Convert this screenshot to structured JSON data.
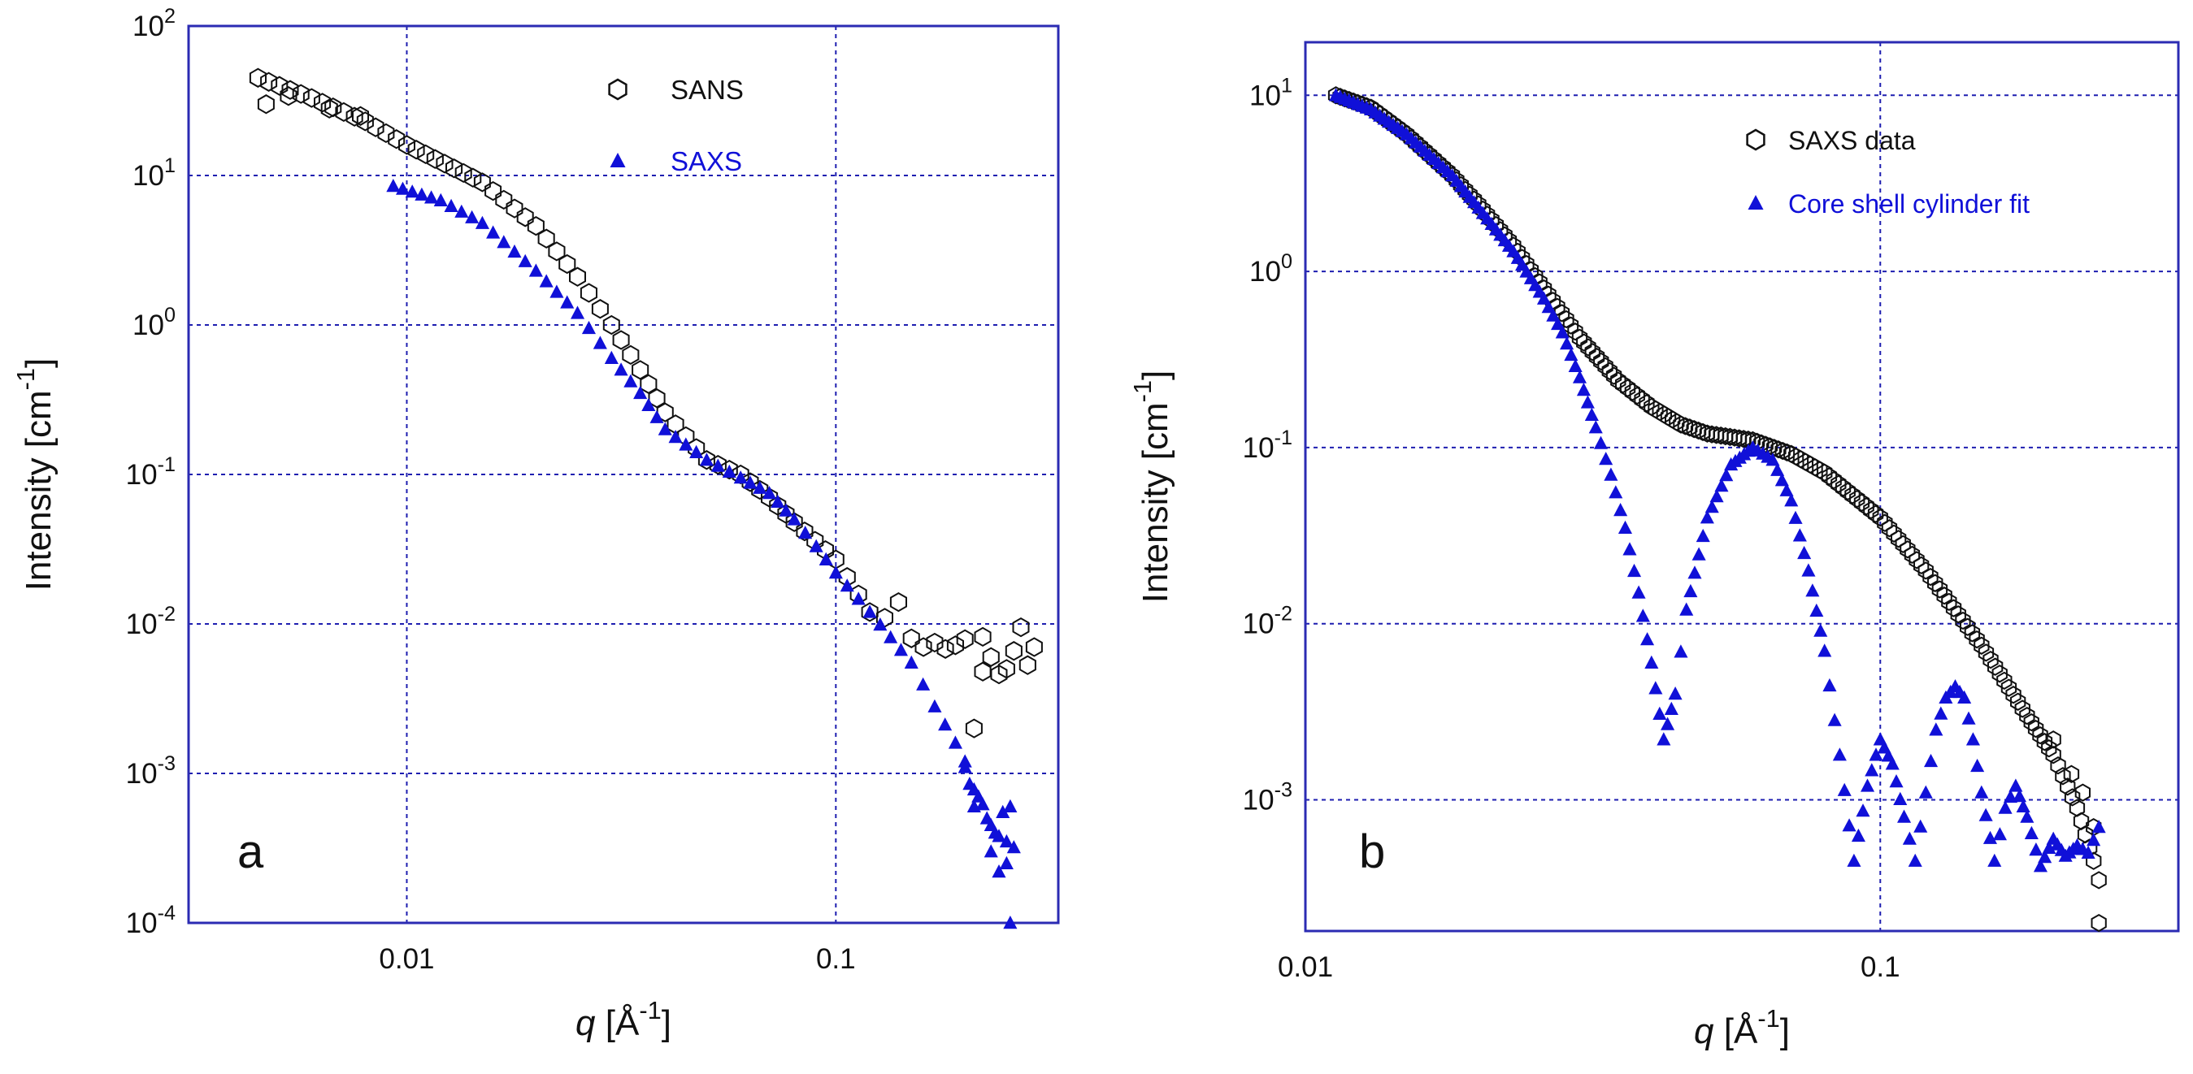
{
  "figure": {
    "colors": {
      "axis": "#2b2bb3",
      "grid": "#1e1eb0",
      "series_open": "#111111",
      "series_fill": "#1010d8",
      "text": "#111111"
    }
  },
  "chart_data": [
    {
      "type": "scatter",
      "panel_label": "a",
      "xscale": "log",
      "yscale": "log",
      "xlim": [
        0.0031,
        0.33
      ],
      "ylim": [
        0.0001,
        100
      ],
      "xticks": [
        {
          "value": 0.01,
          "label": "0.01"
        },
        {
          "value": 0.1,
          "label": "0.1"
        }
      ],
      "yticks": [
        {
          "value": 100,
          "base": "10",
          "exp": "2"
        },
        {
          "value": 10,
          "base": "10",
          "exp": "1"
        },
        {
          "value": 1,
          "base": "10",
          "exp": "0"
        },
        {
          "value": 0.1,
          "base": "10",
          "exp": "-1"
        },
        {
          "value": 0.01,
          "base": "10",
          "exp": "-2"
        },
        {
          "value": 0.001,
          "base": "10",
          "exp": "-3"
        },
        {
          "value": 0.0001,
          "base": "10",
          "exp": "-4"
        }
      ],
      "xlabel": {
        "var": "q",
        "unit": " [Å",
        "exp": "-1",
        "close": "]"
      },
      "ylabel": {
        "text": "Intensity [cm",
        "exp": "-1",
        "close": "]"
      },
      "legend_position": "top-center",
      "series": [
        {
          "name": "SANS",
          "marker": "hexagon-open",
          "legend_color": "#111111",
          "anchors": [
            [
              0.0045,
              45
            ],
            [
              0.006,
              33
            ],
            [
              0.008,
              23
            ],
            [
              0.01,
              16
            ],
            [
              0.015,
              9
            ],
            [
              0.02,
              4.6
            ],
            [
              0.025,
              2.1
            ],
            [
              0.03,
              1.0
            ],
            [
              0.035,
              0.5
            ],
            [
              0.04,
              0.26
            ],
            [
              0.05,
              0.125
            ],
            [
              0.06,
              0.1
            ],
            [
              0.07,
              0.07
            ],
            [
              0.08,
              0.048
            ],
            [
              0.1,
              0.027
            ],
            [
              0.12,
              0.012
            ]
          ],
          "scatter": [
            [
              0.0047,
              30
            ],
            [
              0.0053,
              34
            ],
            [
              0.0066,
              28
            ],
            [
              0.0078,
              25
            ],
            [
              0.13,
              0.011
            ],
            [
              0.14,
              0.014
            ],
            [
              0.15,
              0.008
            ],
            [
              0.16,
              0.007
            ],
            [
              0.17,
              0.0075
            ],
            [
              0.18,
              0.0068
            ],
            [
              0.19,
              0.0072
            ],
            [
              0.2,
              0.0079
            ],
            [
              0.21,
              0.002
            ],
            [
              0.22,
              0.0082
            ],
            [
              0.23,
              0.006
            ],
            [
              0.24,
              0.0046
            ],
            [
              0.25,
              0.005
            ],
            [
              0.26,
              0.0066
            ],
            [
              0.27,
              0.0095
            ],
            [
              0.28,
              0.0053
            ],
            [
              0.29,
              0.007
            ],
            [
              0.22,
              0.0048
            ]
          ]
        },
        {
          "name": "SAXS",
          "marker": "triangle-filled",
          "legend_color": "#1010d8",
          "anchors": [
            [
              0.0093,
              8.5
            ],
            [
              0.012,
              6.8
            ],
            [
              0.015,
              4.8
            ],
            [
              0.02,
              2.3
            ],
            [
              0.025,
              1.2
            ],
            [
              0.03,
              0.6
            ],
            [
              0.035,
              0.35
            ],
            [
              0.04,
              0.2
            ],
            [
              0.05,
              0.125
            ],
            [
              0.06,
              0.095
            ],
            [
              0.07,
              0.075
            ],
            [
              0.08,
              0.05
            ],
            [
              0.09,
              0.033
            ],
            [
              0.1,
              0.022
            ],
            [
              0.12,
              0.012
            ],
            [
              0.15,
              0.0055
            ],
            [
              0.17,
              0.0028
            ],
            [
              0.19,
              0.0016
            ],
            [
              0.2,
              0.0011
            ]
          ],
          "scatter": [
            [
              0.2,
              0.0012
            ],
            [
              0.205,
              0.00085
            ],
            [
              0.21,
              0.0006
            ],
            [
              0.215,
              0.0007
            ],
            [
              0.22,
              0.00062
            ],
            [
              0.225,
              0.0005
            ],
            [
              0.23,
              0.00045
            ],
            [
              0.235,
              0.0004
            ],
            [
              0.24,
              0.00038
            ],
            [
              0.245,
              0.00055
            ],
            [
              0.25,
              0.00035
            ],
            [
              0.255,
              0.0006
            ],
            [
              0.26,
              0.00032
            ],
            [
              0.25,
              0.00025
            ],
            [
              0.24,
              0.00022
            ],
            [
              0.255,
              0.0001
            ],
            [
              0.23,
              0.0003
            ],
            [
              0.21,
              0.00078
            ]
          ]
        }
      ]
    },
    {
      "type": "scatter",
      "panel_label": "b",
      "xscale": "log",
      "yscale": "log",
      "xlim": [
        0.01,
        0.33
      ],
      "ylim": [
        0.00018,
        20
      ],
      "xticks": [
        {
          "value": 0.01,
          "label": "0.01"
        },
        {
          "value": 0.1,
          "label": "0.1"
        }
      ],
      "yticks": [
        {
          "value": 10,
          "base": "10",
          "exp": "1"
        },
        {
          "value": 1,
          "base": "10",
          "exp": "0"
        },
        {
          "value": 0.1,
          "base": "10",
          "exp": "-1"
        },
        {
          "value": 0.01,
          "base": "10",
          "exp": "-2"
        },
        {
          "value": 0.001,
          "base": "10",
          "exp": "-3"
        }
      ],
      "xlabel": {
        "var": "q",
        "unit": " [Å",
        "exp": "-1",
        "close": "]"
      },
      "ylabel": {
        "text": "Intensity [cm",
        "exp": "-1",
        "close": "]"
      },
      "legend_position": "top-right",
      "series": [
        {
          "name": "SAXS data",
          "marker": "hexagon-open",
          "legend_color": "#111111",
          "anchors": [
            [
              0.0113,
              10
            ],
            [
              0.013,
              8.5
            ],
            [
              0.015,
              6.0
            ],
            [
              0.018,
              3.5
            ],
            [
              0.02,
              2.4
            ],
            [
              0.023,
              1.4
            ],
            [
              0.026,
              0.8
            ],
            [
              0.03,
              0.42
            ],
            [
              0.035,
              0.24
            ],
            [
              0.04,
              0.17
            ],
            [
              0.045,
              0.135
            ],
            [
              0.05,
              0.12
            ],
            [
              0.06,
              0.11
            ],
            [
              0.07,
              0.092
            ],
            [
              0.08,
              0.072
            ],
            [
              0.1,
              0.04
            ],
            [
              0.12,
              0.02
            ],
            [
              0.15,
              0.0075
            ],
            [
              0.18,
              0.003
            ],
            [
              0.2,
              0.0018
            ],
            [
              0.22,
              0.0009
            ],
            [
              0.235,
              0.00045
            ],
            [
              0.24,
              0.00035
            ]
          ],
          "scatter": [
            [
              0.24,
              0.0002
            ],
            [
              0.225,
              0.0011
            ],
            [
              0.235,
              0.0007
            ],
            [
              0.215,
              0.0014
            ],
            [
              0.2,
              0.0022
            ]
          ]
        },
        {
          "name": "Core shell cylinder fit",
          "marker": "triangle-filled",
          "legend_color": "#1010d8",
          "anchors": [
            [
              0.0113,
              10
            ],
            [
              0.013,
              8.3
            ],
            [
              0.015,
              6.0
            ],
            [
              0.018,
              3.5
            ],
            [
              0.02,
              2.3
            ],
            [
              0.023,
              1.3
            ],
            [
              0.026,
              0.7
            ],
            [
              0.028,
              0.45
            ],
            [
              0.03,
              0.25
            ],
            [
              0.032,
              0.13
            ],
            [
              0.034,
              0.07
            ],
            [
              0.036,
              0.035
            ],
            [
              0.038,
              0.015
            ],
            [
              0.04,
              0.006
            ],
            [
              0.042,
              0.0022
            ],
            [
              0.044,
              0.004
            ],
            [
              0.046,
              0.012
            ],
            [
              0.05,
              0.04
            ],
            [
              0.055,
              0.08
            ],
            [
              0.06,
              0.1
            ],
            [
              0.065,
              0.085
            ],
            [
              0.07,
              0.05
            ],
            [
              0.075,
              0.02
            ],
            [
              0.08,
              0.007
            ],
            [
              0.085,
              0.0018
            ],
            [
              0.09,
              0.00045
            ],
            [
              0.095,
              0.0012
            ],
            [
              0.1,
              0.0022
            ],
            [
              0.105,
              0.0016
            ],
            [
              0.11,
              0.0008
            ],
            [
              0.115,
              0.00045
            ],
            [
              0.12,
              0.0011
            ],
            [
              0.125,
              0.0025
            ],
            [
              0.13,
              0.0038
            ],
            [
              0.135,
              0.0044
            ],
            [
              0.14,
              0.0038
            ],
            [
              0.145,
              0.0022
            ],
            [
              0.15,
              0.0011
            ],
            [
              0.158,
              0.00045
            ],
            [
              0.165,
              0.0009
            ],
            [
              0.172,
              0.0012
            ],
            [
              0.18,
              0.0008
            ],
            [
              0.19,
              0.00042
            ],
            [
              0.2,
              0.0006
            ],
            [
              0.21,
              0.00048
            ],
            [
              0.22,
              0.00055
            ],
            [
              0.23,
              0.0005
            ],
            [
              0.24,
              0.0007
            ]
          ],
          "scatter": []
        }
      ]
    }
  ]
}
